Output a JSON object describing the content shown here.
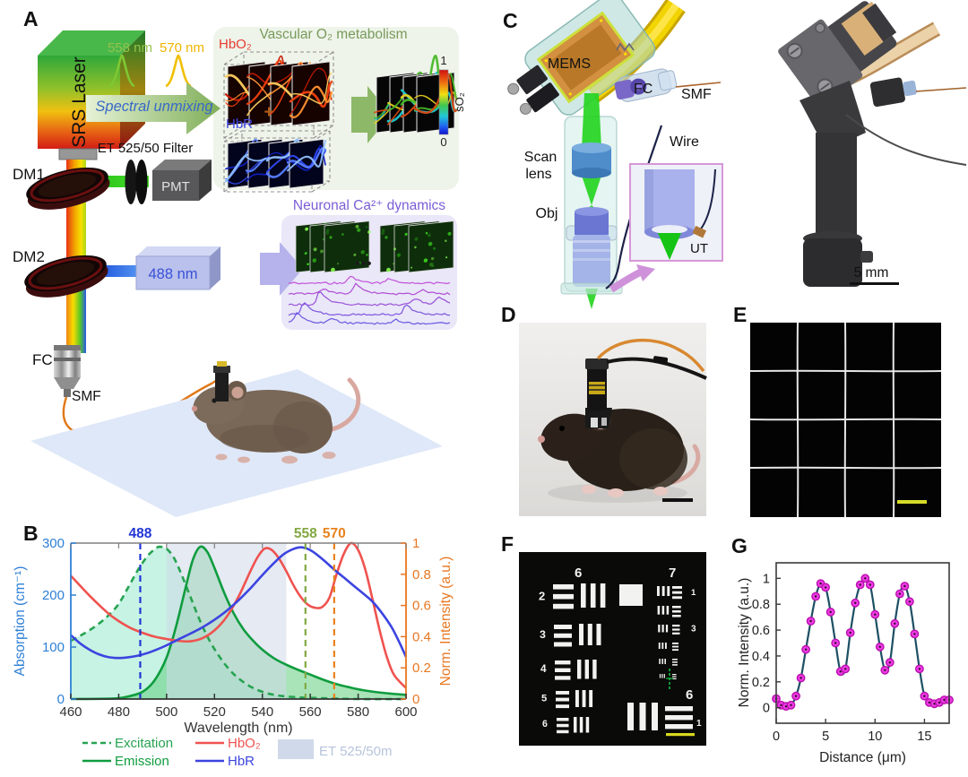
{
  "panel_labels": {
    "a": "A",
    "b": "B",
    "c": "C",
    "d": "D",
    "e": "E",
    "f": "F",
    "g": "G"
  },
  "panel_a": {
    "srs_laser": "SRS Laser",
    "wl_558": "558 nm",
    "wl_570": "570 nm",
    "spectral_unmixing": "Spectral unmixing",
    "et_filter": "ET 525/50 Filter",
    "pmt": "PMT",
    "dm1": "DM1",
    "dm2": "DM2",
    "laser_488": "488 nm",
    "fc": "FC",
    "smf": "SMF",
    "vascular_title": "Vascular O₂ metabolism",
    "hbo2": "HbO₂",
    "plus": "+",
    "hbr": "HbR",
    "colorbar_top": "1",
    "colorbar_bottom": "0",
    "colorbar_label": "sO₂",
    "neuronal_title": "Neuronal Ca²⁺ dynamics",
    "dots": "•••"
  },
  "panel_c": {
    "mems": "MEMS",
    "fc": "FC",
    "smf": "SMF",
    "wire": "Wire",
    "scan_lens_line1": "Scan",
    "scan_lens_line2": "lens",
    "obj": "Obj",
    "ut": "UT",
    "scale_bar": "5 mm"
  },
  "panel_f": {
    "group_left": "6",
    "group_right": "7",
    "left_elements": [
      "2",
      "3",
      "4",
      "5",
      "6"
    ],
    "right_element_1": "1",
    "right_element_3": "3",
    "bottom_group": "6",
    "bottom_element": "1"
  },
  "chart_data": [
    {
      "id": "fig-b-spectra",
      "type": "line",
      "xlabel": "Wavelength (nm)",
      "ylabel_left": "Absorption (cm⁻¹)",
      "ylabel_right": "Norm. Intensity (a.u.)",
      "xlim": [
        460,
        600
      ],
      "ylim_left": [
        0,
        300
      ],
      "ylim_right": [
        0,
        1
      ],
      "xticks": [
        460,
        480,
        500,
        520,
        540,
        560,
        580,
        600
      ],
      "yticks_left": [
        0,
        100,
        200,
        300
      ],
      "yticks_right": [
        0,
        0.2,
        0.4,
        0.6,
        0.8,
        1
      ],
      "band": {
        "label": "ET 525/50m",
        "x0": 500,
        "x1": 550,
        "color": "#cfd9ea",
        "label_color": "#b7c4db"
      },
      "vlines": [
        {
          "x": 489,
          "label": "488",
          "color": "#2336d6"
        },
        {
          "x": 558,
          "label": "558",
          "color": "#82a842"
        },
        {
          "x": 570,
          "label": "570",
          "color": "#e8821c"
        }
      ],
      "axis_colors": {
        "left": "#2e7fd6",
        "right": "#e87722",
        "bottom": "#333333",
        "top": "#808080"
      },
      "series": [
        {
          "name": "Excitation",
          "axis": "left",
          "dash": true,
          "color": "#27a351",
          "fill": "rgba(141,232,199,0.50)",
          "x": [
            460,
            464,
            468,
            472,
            476,
            480,
            484,
            488,
            492,
            495,
            497,
            500,
            503,
            506,
            510,
            514,
            518,
            522,
            526,
            530,
            535,
            540,
            545,
            550,
            556,
            562,
            570,
            580,
            600
          ],
          "y": [
            112,
            122,
            133,
            146,
            162,
            183,
            215,
            248,
            275,
            288,
            293,
            289,
            272,
            242,
            196,
            150,
            112,
            82,
            58,
            40,
            24,
            14,
            8,
            5,
            3,
            2,
            1,
            0,
            0
          ]
        },
        {
          "name": "Emission",
          "axis": "left",
          "dash": false,
          "color": "#0f9c3e",
          "fill": "rgba(96,206,126,0.55)",
          "x": [
            460,
            478,
            484,
            490,
            495,
            500,
            504,
            508,
            511,
            514,
            517,
            520,
            524,
            528,
            532,
            536,
            540,
            545,
            550,
            555,
            560,
            565,
            570,
            576,
            582,
            590,
            600
          ],
          "y": [
            0,
            1,
            5,
            14,
            36,
            80,
            140,
            215,
            268,
            293,
            283,
            252,
            205,
            165,
            135,
            113,
            95,
            78,
            66,
            56,
            47,
            38,
            30,
            23,
            17,
            12,
            8
          ]
        },
        {
          "name": "HbO₂",
          "axis": "right",
          "dash": false,
          "color": "#ef5350",
          "x": [
            460,
            464,
            468,
            472,
            476,
            480,
            485,
            490,
            495,
            500,
            505,
            510,
            515,
            520,
            525,
            530,
            535,
            538,
            541,
            544,
            547,
            550,
            553,
            556,
            559,
            562,
            565,
            568,
            571,
            574,
            577,
            580,
            583,
            586,
            589,
            592,
            595,
            600
          ],
          "y": [
            0.79,
            0.725,
            0.66,
            0.6,
            0.545,
            0.5,
            0.455,
            0.425,
            0.4,
            0.385,
            0.373,
            0.37,
            0.39,
            0.44,
            0.525,
            0.655,
            0.82,
            0.91,
            0.965,
            0.955,
            0.9,
            0.82,
            0.73,
            0.655,
            0.605,
            0.585,
            0.59,
            0.65,
            0.8,
            0.93,
            1.0,
            0.955,
            0.83,
            0.64,
            0.44,
            0.27,
            0.155,
            0.07
          ]
        },
        {
          "name": "HbR",
          "axis": "right",
          "dash": false,
          "color": "#3c44e0",
          "x": [
            460,
            464,
            468,
            472,
            476,
            480,
            484,
            488,
            492,
            496,
            500,
            505,
            510,
            515,
            520,
            525,
            530,
            535,
            540,
            545,
            549,
            553,
            556,
            559,
            562,
            566,
            570,
            574,
            578,
            582,
            586,
            590,
            594,
            597,
            600
          ],
          "y": [
            0.41,
            0.355,
            0.315,
            0.285,
            0.268,
            0.263,
            0.268,
            0.278,
            0.295,
            0.318,
            0.345,
            0.383,
            0.42,
            0.46,
            0.508,
            0.565,
            0.633,
            0.71,
            0.795,
            0.875,
            0.93,
            0.962,
            0.973,
            0.962,
            0.935,
            0.885,
            0.83,
            0.78,
            0.728,
            0.678,
            0.625,
            0.55,
            0.46,
            0.37,
            0.27
          ]
        }
      ],
      "legend_position": "below"
    },
    {
      "id": "fig-g-profile",
      "type": "line",
      "xlabel": "Distance (μm)",
      "ylabel": "Norm. Intensity (a.u.)",
      "xlim": [
        0,
        17.5
      ],
      "ylim": [
        -0.12,
        1.12
      ],
      "xticks": [
        0,
        5,
        10,
        15
      ],
      "yticks": [
        0,
        0.2,
        0.4,
        0.6,
        0.8,
        1
      ],
      "line_color": "#1d4f63",
      "marker_color": "#ee3be4",
      "marker_edge": "#b911ad",
      "x": [
        0,
        0.5,
        1,
        1.5,
        2,
        2.5,
        3,
        3.5,
        4,
        4.5,
        5,
        5.5,
        6,
        6.5,
        7,
        7.5,
        8,
        8.5,
        9,
        9.5,
        10,
        10.5,
        11,
        11.5,
        12,
        12.5,
        13,
        13.5,
        14,
        14.5,
        15,
        15.5,
        16,
        16.5,
        17,
        17.5
      ],
      "y": [
        0.07,
        0.02,
        0.01,
        0.02,
        0.09,
        0.23,
        0.45,
        0.67,
        0.86,
        0.96,
        0.93,
        0.74,
        0.5,
        0.28,
        0.3,
        0.58,
        0.81,
        0.95,
        1.0,
        0.95,
        0.72,
        0.47,
        0.29,
        0.35,
        0.65,
        0.88,
        0.94,
        0.82,
        0.57,
        0.3,
        0.09,
        0.04,
        0.03,
        0.04,
        0.06,
        0.06
      ]
    }
  ]
}
